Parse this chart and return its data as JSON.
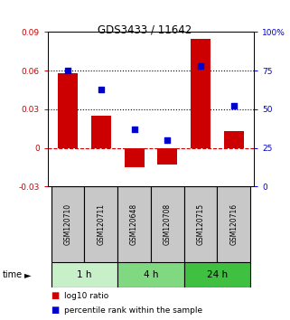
{
  "title": "GDS3433 / 11642",
  "samples": [
    "GSM120710",
    "GSM120711",
    "GSM120648",
    "GSM120708",
    "GSM120715",
    "GSM120716"
  ],
  "log10_ratio": [
    0.058,
    0.025,
    -0.015,
    -0.013,
    0.085,
    0.013
  ],
  "percentile_rank": [
    75,
    63,
    37,
    30,
    78,
    52
  ],
  "bar_color": "#cc0000",
  "square_color": "#0000cc",
  "ylim_left": [
    -0.03,
    0.09
  ],
  "ylim_right": [
    0,
    100
  ],
  "yticks_left": [
    -0.03,
    0,
    0.03,
    0.06,
    0.09
  ],
  "yticks_right": [
    0,
    25,
    50,
    75,
    100
  ],
  "hlines_dotted": [
    0.06,
    0.03
  ],
  "hline_dashed": 0,
  "time_groups": [
    {
      "label": "1 h",
      "start": 0,
      "end": 2,
      "color": "#c8f0c8"
    },
    {
      "label": "4 h",
      "start": 2,
      "end": 4,
      "color": "#80d880"
    },
    {
      "label": "24 h",
      "start": 4,
      "end": 6,
      "color": "#40c040"
    }
  ],
  "time_label": "time",
  "legend_bar_label": "log10 ratio",
  "legend_square_label": "percentile rank within the sample",
  "sample_box_color": "#c8c8c8",
  "bar_width": 0.6,
  "title_color": "#000000",
  "left_axis_color": "#cc0000",
  "right_axis_color": "#0000cc"
}
